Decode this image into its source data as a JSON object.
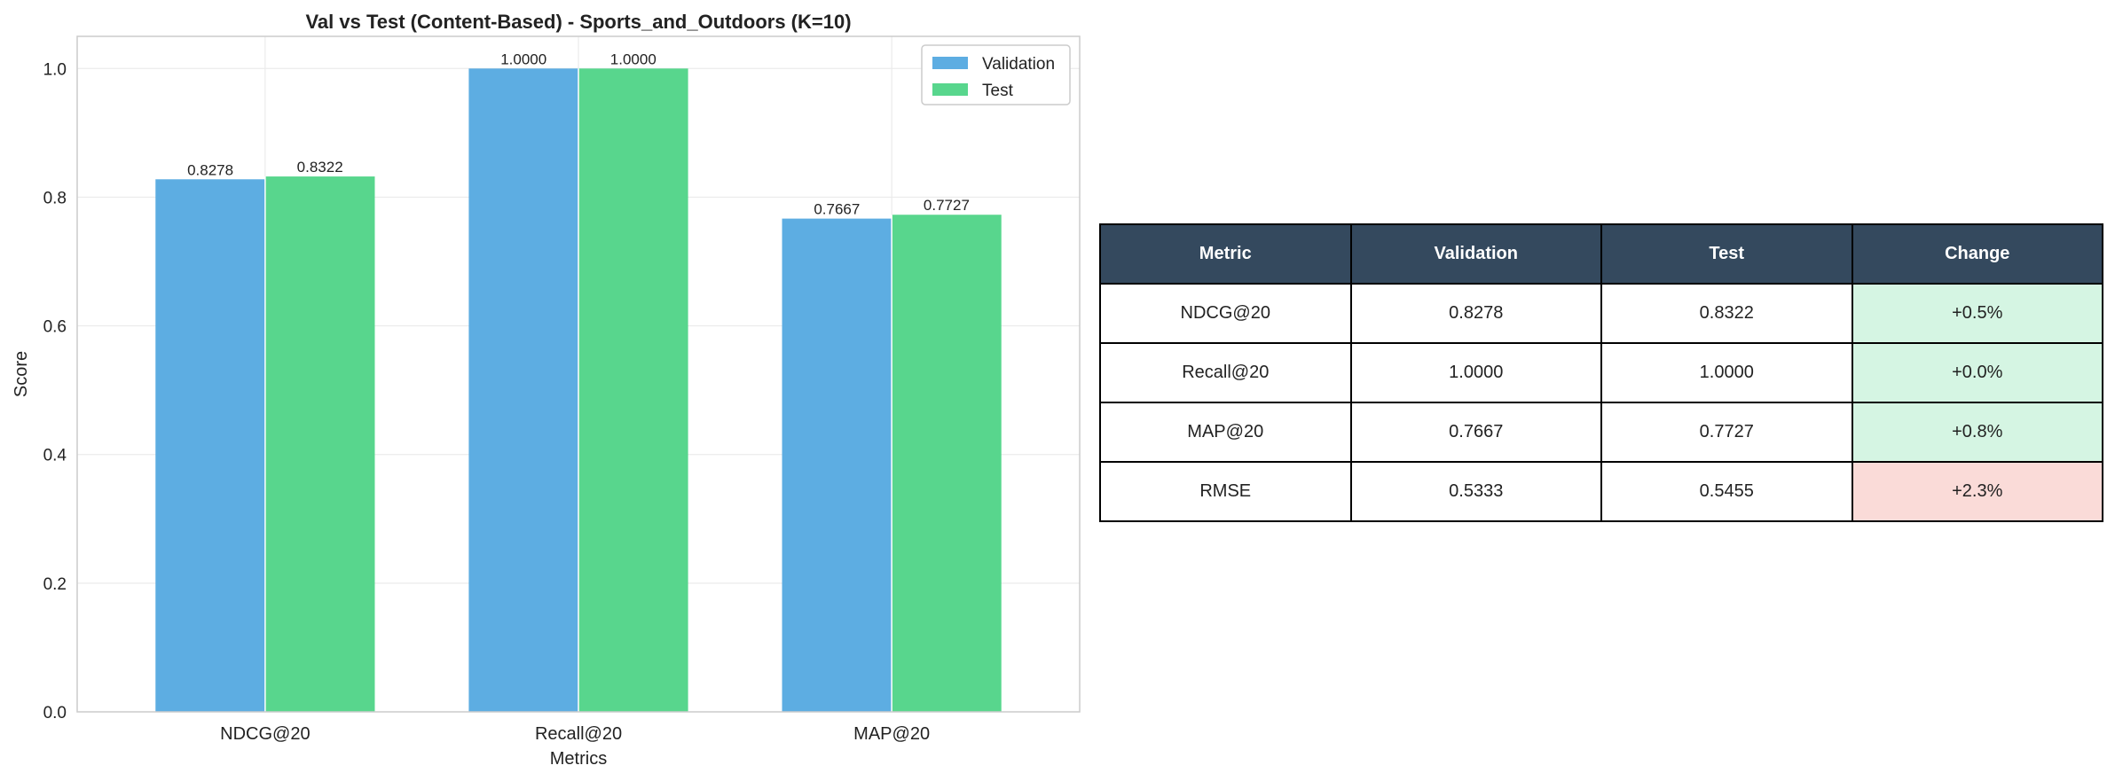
{
  "chart_data": {
    "type": "bar",
    "title": "Val vs Test (Content-Based) - Sports_and_Outdoors (K=10)",
    "xlabel": "Metrics",
    "ylabel": "Score",
    "categories": [
      "NDCG@20",
      "Recall@20",
      "MAP@20"
    ],
    "series": [
      {
        "name": "Validation",
        "color": "#5dade2",
        "values": [
          0.8278,
          1.0,
          0.7667
        ],
        "labels": [
          "0.8278",
          "1.0000",
          "0.7667"
        ]
      },
      {
        "name": "Test",
        "color": "#58d68d",
        "values": [
          0.8322,
          1.0,
          0.7727
        ],
        "labels": [
          "0.8322",
          "1.0000",
          "0.7727"
        ]
      }
    ],
    "ylim": [
      0,
      1.05
    ],
    "yticks": [
      "0.0",
      "0.2",
      "0.4",
      "0.6",
      "0.8",
      "1.0"
    ],
    "grid": true,
    "legend": "top-right"
  },
  "table": {
    "headers": [
      "Metric",
      "Validation",
      "Test",
      "Change"
    ],
    "rows": [
      {
        "cells": [
          "NDCG@20",
          "0.8278",
          "0.8322",
          "+0.5%"
        ],
        "status": "improved"
      },
      {
        "cells": [
          "Recall@20",
          "1.0000",
          "1.0000",
          "+0.0%"
        ],
        "status": "improved"
      },
      {
        "cells": [
          "MAP@20",
          "0.7667",
          "0.7727",
          "+0.8%"
        ],
        "status": "improved"
      },
      {
        "cells": [
          "RMSE",
          "0.5333",
          "0.5455",
          "+2.3%"
        ],
        "status": "worse"
      }
    ],
    "colors": {
      "header_bg": "#34495e",
      "improved_bg": "#d5f5e3",
      "worse_bg": "#fadbd8"
    }
  }
}
